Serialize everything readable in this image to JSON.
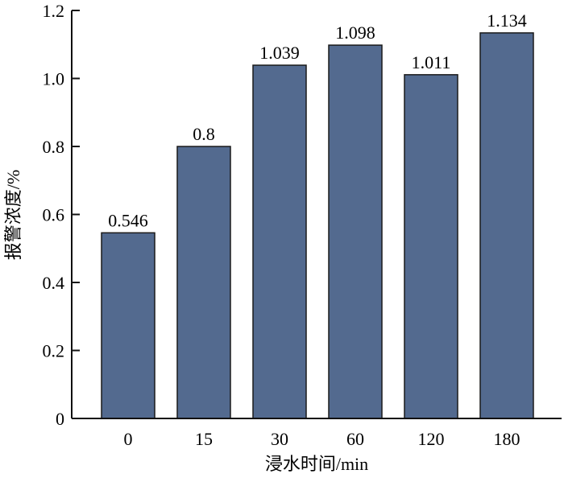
{
  "chart_data": {
    "type": "bar",
    "title": "",
    "xlabel": "浸水时间/min",
    "ylabel": "报警浓度/%",
    "categories": [
      "0",
      "15",
      "30",
      "60",
      "120",
      "180"
    ],
    "values": [
      0.546,
      0.8,
      1.039,
      1.098,
      1.011,
      1.134
    ],
    "data_labels": [
      "0.546",
      "0.8",
      "1.039",
      "1.098",
      "1.011",
      "1.134"
    ],
    "ylim": [
      0,
      1.2
    ],
    "yticks": [
      "0",
      "0.2",
      "0.4",
      "0.6",
      "0.8",
      "1.0",
      "1.2"
    ],
    "grid": false,
    "bar_color": "#536a8f",
    "bar_edge_color": "#1a1a1a"
  }
}
